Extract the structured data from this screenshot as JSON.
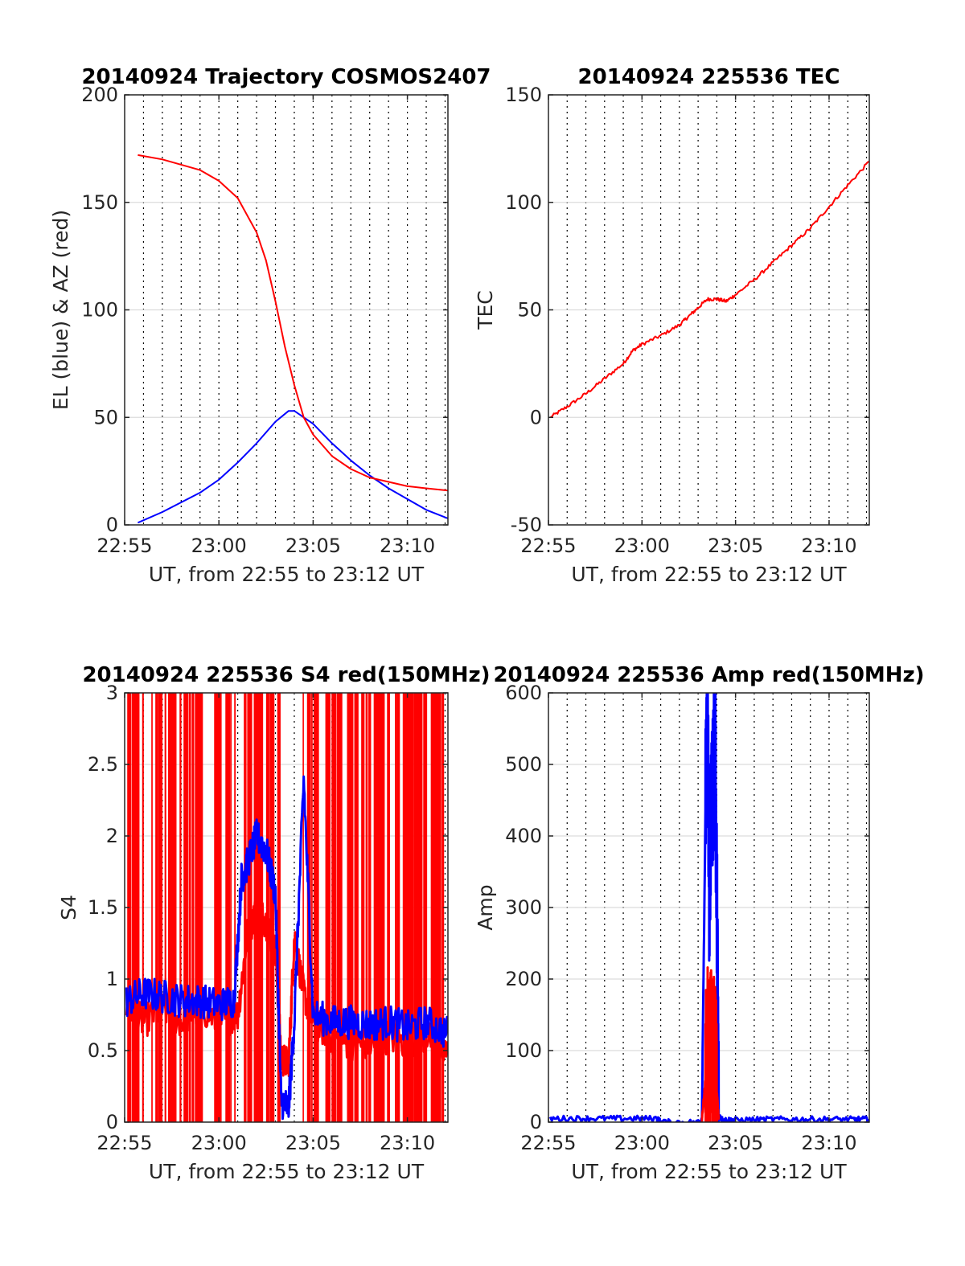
{
  "chart_data": [
    {
      "type": "line",
      "title": "20140924 Trajectory COSMOS2407",
      "xlabel": "UT, from 22:55 to 23:12 UT",
      "ylabel": "EL (blue) & AZ (red)",
      "xlim": [
        0,
        17.15
      ],
      "ylim": [
        0,
        200
      ],
      "xticks": [
        0,
        5,
        10,
        15
      ],
      "xtick_labels": [
        "22:55",
        "23:00",
        "23:05",
        "23:10"
      ],
      "yticks": [
        0,
        50,
        100,
        150,
        200
      ],
      "ytick_labels": [
        "0",
        "50",
        "100",
        "150",
        "200"
      ],
      "grid": "on",
      "series": [
        {
          "name": "EL",
          "color": "#0000ff",
          "x": [
            0.7,
            2,
            4,
            5,
            6,
            7,
            8,
            8.7,
            9,
            10,
            11,
            12,
            13,
            14,
            15,
            16,
            17.15
          ],
          "y": [
            1,
            6,
            15,
            21,
            29,
            38,
            48,
            53,
            53,
            47,
            38,
            30,
            23,
            17,
            12,
            7,
            3
          ]
        },
        {
          "name": "AZ",
          "color": "#ff0000",
          "x": [
            0.7,
            2,
            4,
            5,
            6,
            7,
            7.5,
            8,
            8.5,
            9,
            9.5,
            10,
            11,
            12,
            13,
            14,
            15,
            16,
            17.15
          ],
          "y": [
            172,
            170,
            165,
            160,
            152,
            136,
            123,
            104,
            83,
            65,
            50,
            42,
            32,
            26,
            22,
            20,
            18,
            17,
            16
          ]
        }
      ]
    },
    {
      "type": "line",
      "title": "20140924 225536 TEC",
      "xlabel": "UT, from 22:55 to 23:12 UT",
      "ylabel": "TEC",
      "xlim": [
        0,
        17.15
      ],
      "ylim": [
        -50,
        150
      ],
      "xticks": [
        0,
        5,
        10,
        15
      ],
      "xtick_labels": [
        "22:55",
        "23:00",
        "23:05",
        "23:10"
      ],
      "yticks": [
        -50,
        0,
        50,
        100,
        150
      ],
      "ytick_labels": [
        "-50",
        "0",
        "50",
        "100",
        "150"
      ],
      "grid": "on",
      "series": [
        {
          "name": "TEC",
          "color": "#ff0000",
          "x": [
            0.1,
            1,
            2,
            3,
            4,
            4.5,
            5,
            6,
            7,
            7.5,
            8,
            8.5,
            9,
            9.5,
            10,
            11,
            12,
            13,
            14,
            15,
            16,
            17.15
          ],
          "y": [
            0,
            5,
            11,
            18,
            25,
            31,
            34,
            38,
            43,
            47,
            51,
            55,
            55,
            54,
            57,
            64,
            72,
            80,
            88,
            98,
            108,
            119
          ]
        }
      ]
    },
    {
      "type": "line",
      "title": "20140924 225536 S4 red(150MHz)",
      "xlabel": "UT, from 22:55 to 23:12 UT",
      "ylabel": "S4",
      "xlim": [
        0,
        17.15
      ],
      "ylim": [
        0,
        3
      ],
      "xticks": [
        0,
        5,
        10,
        15
      ],
      "xtick_labels": [
        "22:55",
        "23:00",
        "23:05",
        "23:10"
      ],
      "yticks": [
        0,
        0.5,
        1,
        1.5,
        2,
        2.5,
        3
      ],
      "ytick_labels": [
        "0",
        "0.5",
        "1",
        "1.5",
        "2",
        "2.5",
        "3"
      ],
      "grid": "on",
      "series": [
        {
          "name": "red (150MHz)",
          "color": "#ff0000",
          "x": [
            0.1,
            1,
            2,
            3,
            4,
            5,
            6,
            6.5,
            7,
            7.5,
            8,
            8.3,
            8.7,
            9,
            9.5,
            10,
            11,
            12,
            13,
            14,
            15,
            16,
            17.15
          ],
          "y": [
            0.8,
            0.7,
            0.8,
            0.7,
            0.8,
            0.7,
            0.75,
            1.3,
            1.5,
            1.4,
            1.2,
            0.45,
            0.4,
            1.3,
            0.9,
            0.7,
            0.6,
            0.55,
            0.55,
            0.6,
            0.55,
            0.6,
            0.5
          ]
        },
        {
          "name": "blue",
          "color": "#0000ff",
          "x": [
            0.1,
            1,
            2,
            3,
            4,
            5,
            5.8,
            6.2,
            6.5,
            7,
            7.5,
            8,
            8.3,
            8.7,
            9,
            9.5,
            10,
            11,
            12,
            13,
            14,
            15,
            16,
            17.15
          ],
          "y": [
            0.85,
            0.9,
            0.88,
            0.85,
            0.85,
            0.82,
            0.85,
            1.7,
            1.8,
            2.0,
            1.9,
            1.6,
            0.15,
            0.1,
            0.7,
            2.4,
            0.75,
            0.7,
            0.7,
            0.68,
            0.7,
            0.66,
            0.7,
            0.62
          ]
        }
      ]
    },
    {
      "type": "line",
      "title": "20140924 225536 Amp red(150MHz)",
      "xlabel": "UT, from 22:55 to 23:12 UT",
      "ylabel": "Amp",
      "xlim": [
        0,
        17.15
      ],
      "ylim": [
        0,
        600
      ],
      "xticks": [
        0,
        5,
        10,
        15
      ],
      "xtick_labels": [
        "22:55",
        "23:00",
        "23:05",
        "23:10"
      ],
      "yticks": [
        0,
        100,
        200,
        300,
        400,
        500,
        600
      ],
      "ytick_labels": [
        "0",
        "100",
        "200",
        "300",
        "400",
        "500",
        "600"
      ],
      "grid": "on",
      "series": [
        {
          "name": "blue",
          "color": "#0000ff",
          "x": [
            0.1,
            2,
            4,
            5.8,
            6,
            8,
            8.2,
            8.4,
            8.5,
            8.6,
            8.7,
            8.8,
            8.9,
            9.0,
            9.1,
            9.3,
            10,
            12,
            14,
            16,
            17.15
          ],
          "y": [
            5,
            5,
            5,
            5,
            0,
            0,
            2,
            450,
            580,
            320,
            480,
            440,
            570,
            300,
            10,
            3,
            3,
            4,
            4,
            4,
            4
          ]
        },
        {
          "name": "red (150MHz)",
          "color": "#ff0000",
          "x": [
            8.2,
            8.4,
            8.5,
            8.6,
            8.7,
            8.8,
            8.9,
            9.0,
            9.1
          ],
          "y": [
            2,
            60,
            100,
            70,
            110,
            90,
            80,
            40,
            5
          ]
        }
      ]
    }
  ]
}
